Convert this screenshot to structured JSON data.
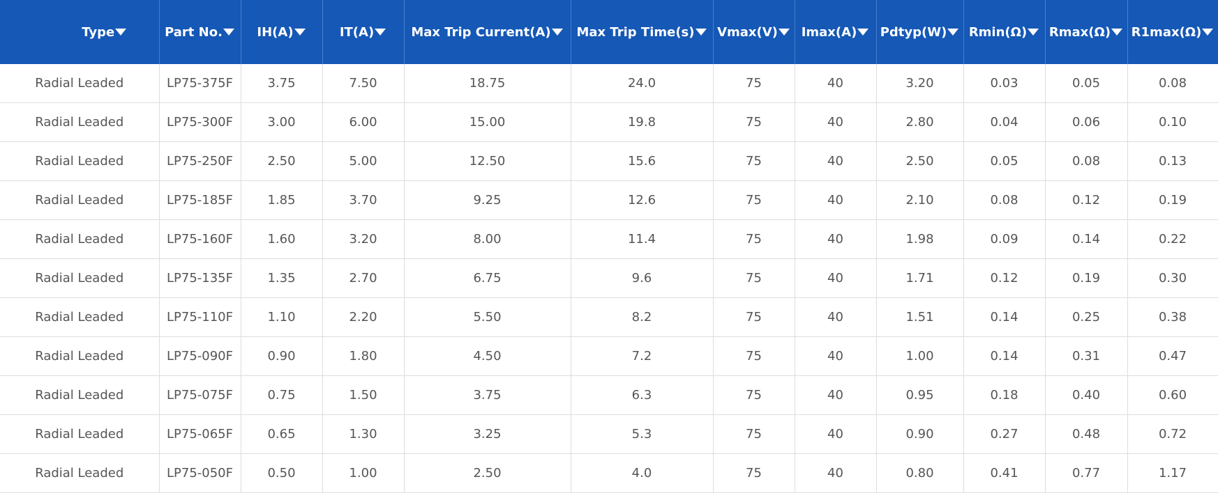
{
  "table": {
    "headers": [
      "Type",
      "Part No.",
      "IH(A)",
      "IT(A)",
      "Max Trip Current(A)",
      "Max Trip Time(s)",
      "Vmax(V)",
      "Imax(A)",
      "Pdtyp(W)",
      "Rmin(Ω)",
      "Rmax(Ω)",
      "R1max(Ω)"
    ],
    "rows": [
      [
        "Radial Leaded",
        "LP75-375F",
        "3.75",
        "7.50",
        "18.75",
        "24.0",
        "75",
        "40",
        "3.20",
        "0.03",
        "0.05",
        "0.08"
      ],
      [
        "Radial Leaded",
        "LP75-300F",
        "3.00",
        "6.00",
        "15.00",
        "19.8",
        "75",
        "40",
        "2.80",
        "0.04",
        "0.06",
        "0.10"
      ],
      [
        "Radial Leaded",
        "LP75-250F",
        "2.50",
        "5.00",
        "12.50",
        "15.6",
        "75",
        "40",
        "2.50",
        "0.05",
        "0.08",
        "0.13"
      ],
      [
        "Radial Leaded",
        "LP75-185F",
        "1.85",
        "3.70",
        "9.25",
        "12.6",
        "75",
        "40",
        "2.10",
        "0.08",
        "0.12",
        "0.19"
      ],
      [
        "Radial Leaded",
        "LP75-160F",
        "1.60",
        "3.20",
        "8.00",
        "11.4",
        "75",
        "40",
        "1.98",
        "0.09",
        "0.14",
        "0.22"
      ],
      [
        "Radial Leaded",
        "LP75-135F",
        "1.35",
        "2.70",
        "6.75",
        "9.6",
        "75",
        "40",
        "1.71",
        "0.12",
        "0.19",
        "0.30"
      ],
      [
        "Radial Leaded",
        "LP75-110F",
        "1.10",
        "2.20",
        "5.50",
        "8.2",
        "75",
        "40",
        "1.51",
        "0.14",
        "0.25",
        "0.38"
      ],
      [
        "Radial Leaded",
        "LP75-090F",
        "0.90",
        "1.80",
        "4.50",
        "7.2",
        "75",
        "40",
        "1.00",
        "0.14",
        "0.31",
        "0.47"
      ],
      [
        "Radial Leaded",
        "LP75-075F",
        "0.75",
        "1.50",
        "3.75",
        "6.3",
        "75",
        "40",
        "0.95",
        "0.18",
        "0.40",
        "0.60"
      ],
      [
        "Radial Leaded",
        "LP75-065F",
        "0.65",
        "1.30",
        "3.25",
        "5.3",
        "75",
        "40",
        "0.90",
        "0.27",
        "0.48",
        "0.72"
      ],
      [
        "Radial Leaded",
        "LP75-050F",
        "0.50",
        "1.00",
        "2.50",
        "4.0",
        "75",
        "40",
        "0.80",
        "0.41",
        "0.77",
        "1.17"
      ]
    ]
  }
}
